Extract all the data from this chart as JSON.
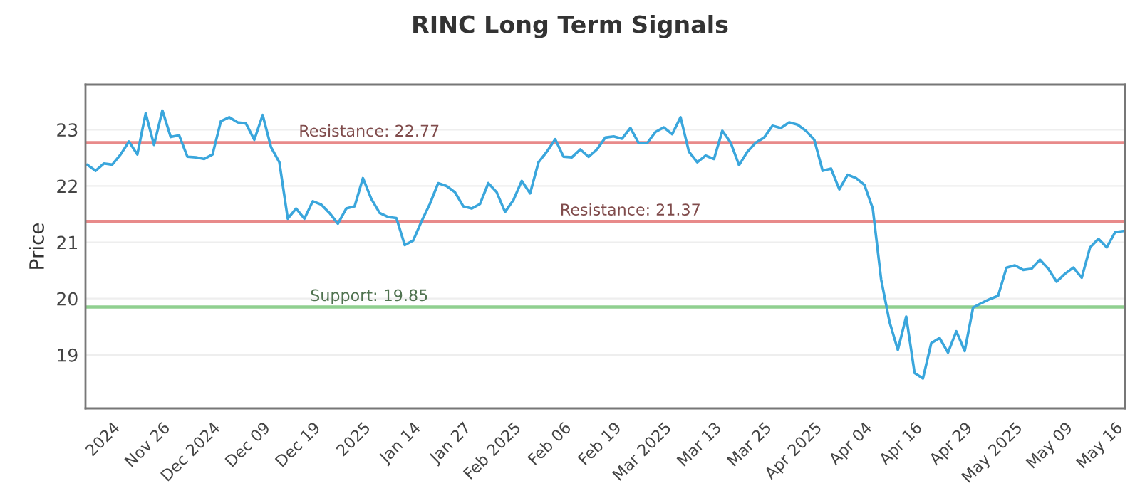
{
  "chart_data": {
    "type": "line",
    "title": "RINC Long Term Signals",
    "ylabel": "Price",
    "categories": [
      null,
      null,
      null,
      "2024",
      null,
      null,
      null,
      null,
      null,
      "Nov 26",
      null,
      null,
      null,
      null,
      null,
      "Dec 2024",
      null,
      null,
      null,
      null,
      null,
      "Dec 09",
      null,
      null,
      null,
      null,
      null,
      "Dec 19",
      null,
      null,
      null,
      null,
      null,
      "2025",
      null,
      null,
      null,
      null,
      null,
      "Jan 14",
      null,
      null,
      null,
      null,
      null,
      "Jan 27",
      null,
      null,
      null,
      null,
      null,
      "Feb 2025",
      null,
      null,
      null,
      null,
      null,
      "Feb 06",
      null,
      null,
      null,
      null,
      null,
      "Feb 19",
      null,
      null,
      null,
      null,
      null,
      "Mar 2025",
      null,
      null,
      null,
      null,
      null,
      "Mar 13",
      null,
      null,
      null,
      null,
      null,
      "Mar 25",
      null,
      null,
      null,
      null,
      null,
      "Apr 2025",
      null,
      null,
      null,
      null,
      null,
      "Apr 04",
      null,
      null,
      null,
      null,
      null,
      "Apr 16",
      null,
      null,
      null,
      null,
      null,
      "Apr 29",
      null,
      null,
      null,
      null,
      null,
      "May 2025",
      null,
      null,
      null,
      null,
      null,
      "May 09",
      null,
      null,
      null,
      null,
      null,
      "May 16",
      null
    ],
    "series": [
      {
        "color": "#3aa6dc",
        "values": [
          22.38,
          22.27,
          22.4,
          22.38,
          22.56,
          22.79,
          22.56,
          23.29,
          22.73,
          23.34,
          22.87,
          22.9,
          22.52,
          22.51,
          22.48,
          22.56,
          23.15,
          23.22,
          23.13,
          23.11,
          22.82,
          23.26,
          22.69,
          22.42,
          21.42,
          21.6,
          21.42,
          21.73,
          21.67,
          21.52,
          21.33,
          21.6,
          21.64,
          22.14,
          21.77,
          21.52,
          21.45,
          21.43,
          20.95,
          21.03,
          21.37,
          21.68,
          22.05,
          22.0,
          21.89,
          21.64,
          21.6,
          21.68,
          22.05,
          21.89,
          21.54,
          21.75,
          22.09,
          21.87,
          22.42,
          22.61,
          22.83,
          22.52,
          22.51,
          22.65,
          22.52,
          22.65,
          22.86,
          22.88,
          22.84,
          23.03,
          22.76,
          22.76,
          22.96,
          23.04,
          22.92,
          23.22,
          22.61,
          22.42,
          22.54,
          22.48,
          22.98,
          22.77,
          22.37,
          22.61,
          22.77,
          22.86,
          23.07,
          23.03,
          23.13,
          23.09,
          22.98,
          22.82,
          22.27,
          22.31,
          21.94,
          22.2,
          22.14,
          22.02,
          21.6,
          20.34,
          19.59,
          19.09,
          19.68,
          18.68,
          18.58,
          19.21,
          19.3,
          19.04,
          19.42,
          19.07,
          19.84,
          19.92,
          19.99,
          20.05,
          20.55,
          20.59,
          20.51,
          20.53,
          20.69,
          20.53,
          20.3,
          20.44,
          20.55,
          20.37,
          20.91,
          21.06,
          20.91,
          21.18,
          21.2
        ]
      }
    ],
    "ylim": [
      18.05,
      23.8
    ],
    "yticks": [
      19,
      20,
      21,
      22,
      23
    ],
    "grid": "y",
    "legend": false,
    "marker": "none",
    "line_style": "solid",
    "ref_lines": [
      {
        "axis": "y",
        "value": 22.77,
        "label": "Resistance: 22.77",
        "color": "#e88a8a"
      },
      {
        "axis": "y",
        "value": 21.37,
        "label": "Resistance: 21.37",
        "color": "#e88a8a"
      },
      {
        "axis": "y",
        "value": 19.85,
        "label": "Support: 19.85",
        "color": "#90d090"
      }
    ]
  }
}
